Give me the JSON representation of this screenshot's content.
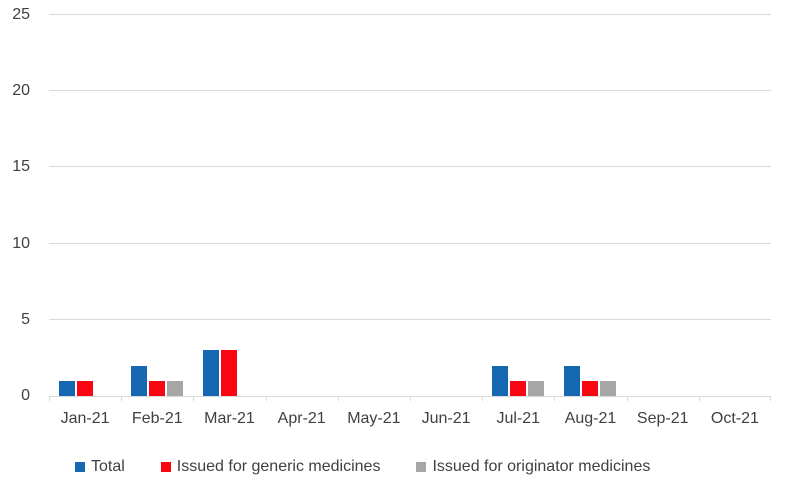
{
  "chart_data": {
    "type": "bar",
    "title": "",
    "xlabel": "",
    "ylabel": "",
    "categories": [
      "Jan-21",
      "Feb-21",
      "Mar-21",
      "Apr-21",
      "May-21",
      "Jun-21",
      "Jul-21",
      "Aug-21",
      "Sep-21",
      "Oct-21"
    ],
    "series": [
      {
        "name": "Total",
        "color": "#1667B1",
        "values": [
          1,
          2,
          3,
          0,
          0,
          0,
          2,
          2,
          0,
          0
        ]
      },
      {
        "name": "Issued for generic medicines",
        "color": "#F80612",
        "values": [
          1,
          1,
          3,
          0,
          0,
          0,
          1,
          1,
          0,
          0
        ]
      },
      {
        "name": "Issued for originator medicines",
        "color": "#A6A6A6",
        "values": [
          0,
          1,
          0,
          0,
          0,
          0,
          1,
          1,
          0,
          0
        ]
      }
    ],
    "ylim": [
      0,
      25
    ],
    "yticks": [
      0,
      5,
      10,
      15,
      20,
      25
    ],
    "grid": true,
    "legend_position": "bottom"
  },
  "style": {
    "text_color": "#404040",
    "gridline_color": "#D9D9D9",
    "axis_color": "#D9D9D9",
    "background": "#FFFFFF"
  }
}
